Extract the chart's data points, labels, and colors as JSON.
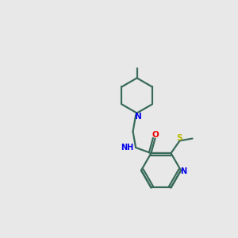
{
  "background_color": "#e8e8e8",
  "bond_color": "#3a6b5a",
  "N_color": "#0000ee",
  "O_color": "#ee0000",
  "S_color": "#bbbb00",
  "line_width": 1.6,
  "figsize": [
    3.0,
    3.0
  ],
  "dpi": 100,
  "xlim": [
    0,
    10
  ],
  "ylim": [
    0,
    10
  ]
}
